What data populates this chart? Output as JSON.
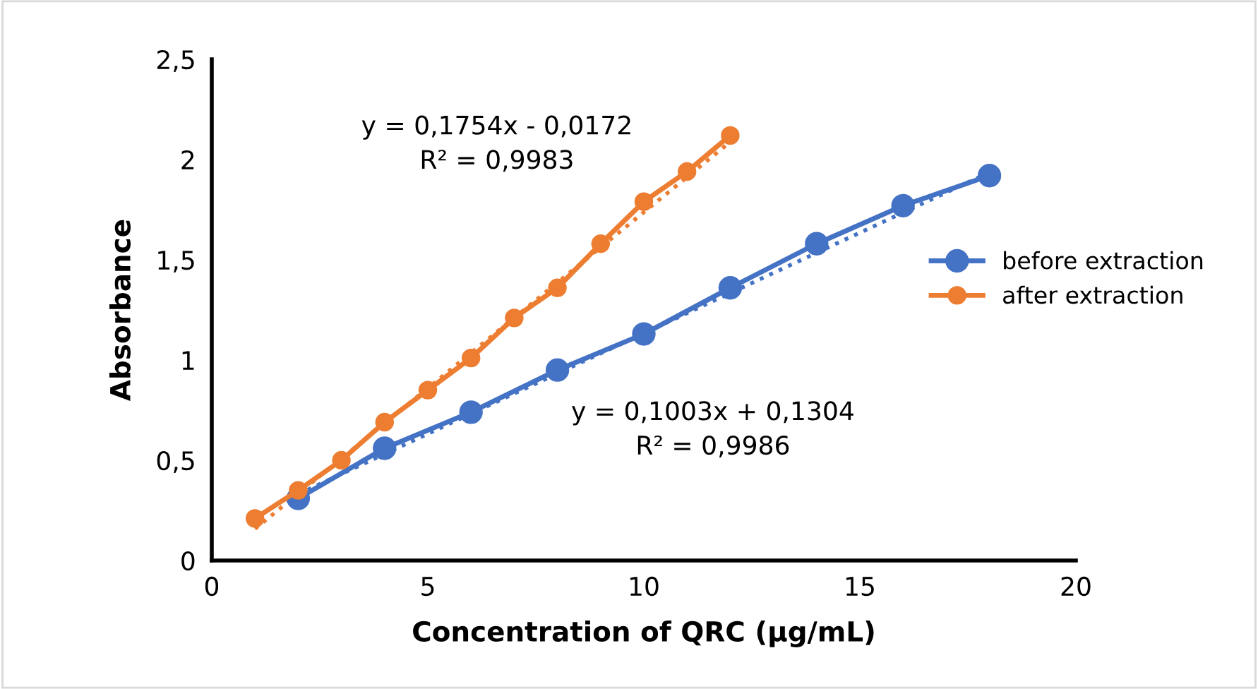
{
  "chart_data": {
    "type": "line",
    "xlabel": "Concentration of QRC (µg/mL)",
    "ylabel": "Absorbance",
    "xlim": [
      0,
      20
    ],
    "xticks": [
      0,
      5,
      10,
      15,
      20
    ],
    "ylim": [
      0,
      2.5
    ],
    "yticks": [
      0,
      {
        "value": 0.5,
        "label": "0,5"
      },
      1,
      {
        "value": 1.5,
        "label": "1,5"
      },
      2,
      {
        "value": 2.5,
        "label": "2,5"
      }
    ],
    "marker": "circle",
    "grid": false,
    "legend": "right",
    "series": [
      {
        "name": "before extraction",
        "color": "#4472c4",
        "x": [
          2,
          4,
          6,
          8,
          10,
          12,
          14,
          16,
          18
        ],
        "values": [
          0.31,
          0.56,
          0.74,
          0.95,
          1.13,
          1.36,
          1.58,
          1.77,
          1.92
        ]
      },
      {
        "name": "after extraction",
        "color": "#ed7d31",
        "x": [
          1,
          2,
          3,
          4,
          5,
          6,
          7,
          8,
          9,
          10,
          11,
          12
        ],
        "values": [
          0.21,
          0.35,
          0.5,
          0.69,
          0.85,
          1.01,
          1.21,
          1.36,
          1.58,
          1.79,
          1.94,
          2.12
        ]
      },
      {
        "type": "line",
        "color": "#4472c4",
        "x": [
          2,
          18
        ],
        "values": [
          0.331,
          1.936
        ],
        "line_style": "dotted",
        "marker": "none"
      },
      {
        "type": "line",
        "color": "#ed7d31",
        "x": [
          1,
          12
        ],
        "values": [
          0.158,
          2.088
        ],
        "line_style": "dotted",
        "marker": "none"
      }
    ],
    "annotations": [
      "y = 0,1754x - 0,0172\nR² = 0,9983",
      "y = 0,1003x + 0,1304\nR² = 0,9986"
    ]
  }
}
